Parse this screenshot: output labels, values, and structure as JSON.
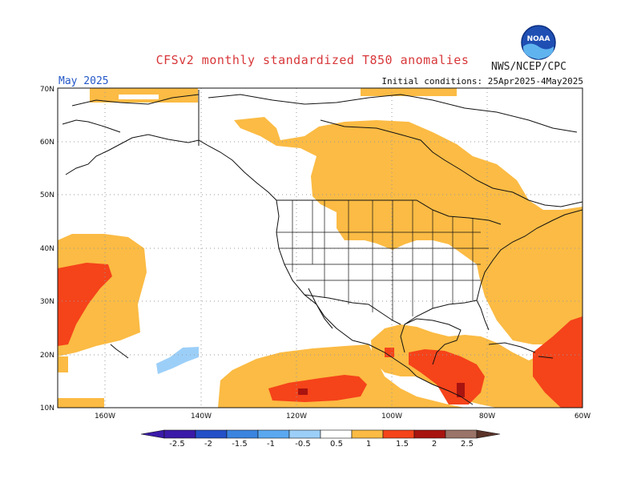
{
  "header": {
    "title": "CFSv2 monthly standardized T850 anomalies",
    "organization": "NWS/NCEP/CPC",
    "logo_text": "NOAA",
    "month": "May 2025",
    "initial_conditions": "Initial conditions: 25Apr2025-4May2025"
  },
  "map": {
    "lat_labels": [
      "70N",
      "60N",
      "50N",
      "40N",
      "30N",
      "20N",
      "10N"
    ],
    "lon_labels": [
      "160W",
      "140W",
      "120W",
      "100W",
      "80W",
      "60W"
    ],
    "grid": true
  },
  "colorbar": {
    "labels": [
      "-2.5",
      "-2",
      "-1.5",
      "-1",
      "-0.5",
      "0.5",
      "1",
      "1.5",
      "2",
      "2.5"
    ],
    "colors": [
      "#3a1aa8",
      "#2350c8",
      "#3a84e0",
      "#5aa8f0",
      "#9ccff8",
      "#ffffff",
      "#fbbb44",
      "#f5431a",
      "#a8140f",
      "#9a7468",
      "#5a3328"
    ]
  },
  "colors": {
    "light_orange": "#fbbb44",
    "red_orange": "#f5431a",
    "dark_red": "#a8140f",
    "light_blue": "#9ccff8",
    "title_red": "#d8373a"
  }
}
